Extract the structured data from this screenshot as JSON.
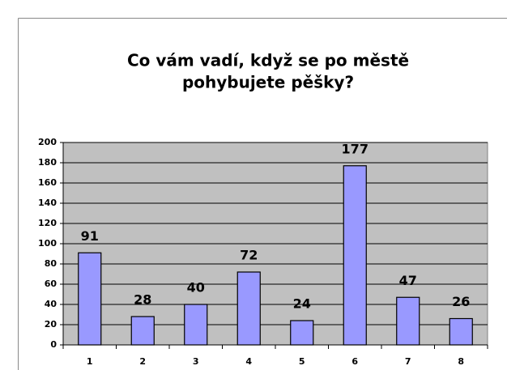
{
  "chart_data": {
    "type": "bar",
    "title": [
      "Co vám vadí, když se po městě",
      "pohybujete pěšky?"
    ],
    "categories": [
      "1",
      "2",
      "3",
      "4",
      "5",
      "6",
      "7",
      "8"
    ],
    "values": [
      91,
      28,
      40,
      72,
      24,
      177,
      47,
      26
    ],
    "color": "#9999ff",
    "ylim": [
      0,
      200
    ],
    "yticks": [
      0,
      20,
      40,
      60,
      80,
      100,
      120,
      140,
      160,
      180,
      200
    ],
    "grid": true
  }
}
